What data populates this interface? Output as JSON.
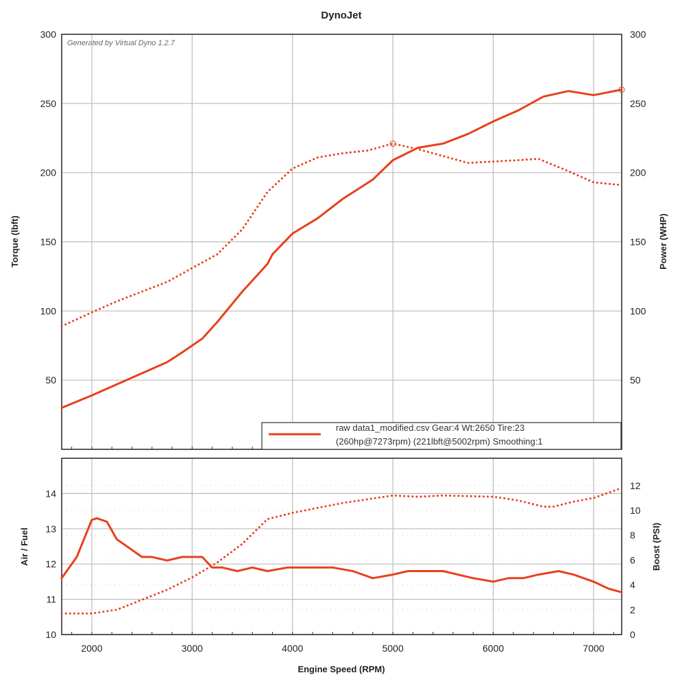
{
  "chart_data": [
    {
      "type": "line",
      "title": "DynoJet",
      "watermark": "Generated by Virtual Dyno 1.2.7",
      "xlabel": "Engine Speed (RPM)",
      "ylabel": "Torque (lbft)",
      "y2label": "Power (WHP)",
      "xlim": [
        1700,
        7280
      ],
      "ylim": [
        0,
        300
      ],
      "y2lim": [
        0,
        300
      ],
      "yticks": [
        50,
        100,
        150,
        200,
        250,
        300
      ],
      "y2ticks": [
        50,
        100,
        150,
        200,
        250,
        300
      ],
      "grid": true,
      "legend": {
        "placement": "bottom-right",
        "line1": "raw data1_modified.csv Gear:4 Wt:2650 Tire:23",
        "line2": "(260hp@7273rpm) (221lbft@5002rpm) Smoothing:1"
      },
      "series": [
        {
          "name": "Power (WHP)",
          "style": "solid",
          "color": "#e8401c",
          "x": [
            1700,
            2000,
            2250,
            2500,
            2750,
            2900,
            3000,
            3100,
            3250,
            3500,
            3750,
            3800,
            4000,
            4250,
            4500,
            4800,
            5000,
            5250,
            5500,
            5750,
            6000,
            6250,
            6500,
            6750,
            7000,
            7280
          ],
          "y": [
            30,
            39,
            47,
            55,
            63,
            70,
            75,
            80,
            92,
            114,
            134,
            141,
            156,
            167,
            181,
            195,
            209,
            218,
            221,
            228,
            237,
            245,
            255,
            259,
            256,
            260
          ]
        },
        {
          "name": "Torque (lbft)",
          "style": "dotted",
          "color": "#e8401c",
          "x": [
            1700,
            2000,
            2250,
            2500,
            2750,
            3000,
            3250,
            3500,
            3750,
            4000,
            4250,
            4500,
            4750,
            5000,
            5250,
            5500,
            5750,
            6000,
            6250,
            6450,
            6750,
            7000,
            7280
          ],
          "y": [
            89,
            99,
            107,
            114,
            121,
            131,
            141,
            159,
            186,
            203,
            211,
            214,
            216,
            221,
            217,
            212,
            207,
            208,
            209,
            210,
            201,
            193,
            191
          ]
        }
      ]
    },
    {
      "type": "line",
      "xlabel": "Engine Speed (RPM)",
      "ylabel": "Air / Fuel",
      "y2label": "Boost (PSI)",
      "xlim": [
        1700,
        7280
      ],
      "xticks": [
        2000,
        3000,
        4000,
        5000,
        6000,
        7000
      ],
      "ylim": [
        10,
        15
      ],
      "yticks": [
        10,
        11,
        12,
        13,
        14
      ],
      "y2lim": [
        0,
        14.2
      ],
      "y2ticks": [
        0,
        2,
        4,
        6,
        8,
        10,
        12
      ],
      "grid": true,
      "series": [
        {
          "name": "Air / Fuel",
          "style": "solid",
          "color": "#e8401c",
          "x": [
            1700,
            1850,
            1950,
            2000,
            2050,
            2150,
            2250,
            2400,
            2500,
            2600,
            2750,
            2900,
            3100,
            3200,
            3300,
            3450,
            3600,
            3750,
            3950,
            4400,
            4600,
            4800,
            5000,
            5150,
            5500,
            5800,
            6000,
            6150,
            6300,
            6450,
            6650,
            6800,
            7000,
            7150,
            7280
          ],
          "y": [
            11.6,
            12.2,
            12.9,
            13.25,
            13.3,
            13.2,
            12.7,
            12.4,
            12.2,
            12.2,
            12.1,
            12.2,
            12.2,
            11.9,
            11.9,
            11.8,
            11.9,
            11.8,
            11.9,
            11.9,
            11.8,
            11.6,
            11.7,
            11.8,
            11.8,
            11.6,
            11.5,
            11.6,
            11.6,
            11.7,
            11.8,
            11.7,
            11.5,
            11.3,
            11.2
          ]
        },
        {
          "name": "Boost (PSI)",
          "style": "dotted",
          "color": "#e8401c",
          "x": [
            1700,
            2000,
            2250,
            2500,
            2750,
            3000,
            3250,
            3500,
            3750,
            4000,
            4500,
            5000,
            5250,
            5500,
            6000,
            6250,
            6500,
            6600,
            6800,
            7000,
            7280
          ],
          "y": [
            1.7,
            1.7,
            2.0,
            2.8,
            3.6,
            4.6,
            5.8,
            7.3,
            9.3,
            9.8,
            10.6,
            11.2,
            11.1,
            11.2,
            11.1,
            10.8,
            10.3,
            10.3,
            10.7,
            11.0,
            11.8
          ]
        }
      ]
    }
  ]
}
